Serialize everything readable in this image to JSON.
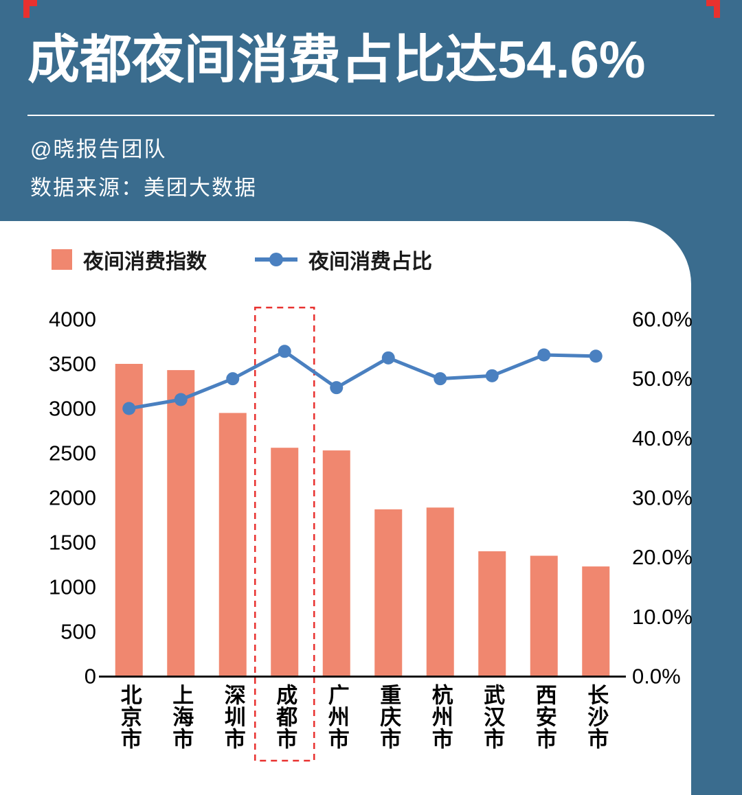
{
  "page": {
    "title": "成都夜间消费占比达54.6%",
    "byline": "@晓报告团队",
    "source": "数据来源：美团大数据"
  },
  "colors": {
    "background": "#3a6c8e",
    "bar": "#f0876f",
    "line": "#4a80c0",
    "highlight": "#e8312f"
  },
  "legend": [
    {
      "label": "夜间消费指数",
      "type": "bar"
    },
    {
      "label": "夜间消费占比",
      "type": "line"
    }
  ],
  "chart_data": {
    "type": "bar+line",
    "title": "成都夜间消费占比达54.6%",
    "categories": [
      "北京市",
      "上海市",
      "深圳市",
      "成都市",
      "广州市",
      "重庆市",
      "杭州市",
      "武汉市",
      "西安市",
      "长沙市"
    ],
    "series": [
      {
        "name": "夜间消费指数",
        "type": "bar",
        "axis": "left",
        "values": [
          3500,
          3430,
          2950,
          2560,
          2530,
          1870,
          1890,
          1400,
          1350,
          1230
        ]
      },
      {
        "name": "夜间消费占比",
        "type": "line",
        "axis": "right",
        "values": [
          45.0,
          46.5,
          50.0,
          54.6,
          48.5,
          53.5,
          50.0,
          50.5,
          54.0,
          53.8
        ]
      }
    ],
    "left_axis": {
      "min": 0,
      "max": 4000,
      "step": 500,
      "ticks": [
        "4000",
        "3500",
        "3000",
        "2500",
        "2000",
        "1500",
        "1000",
        "500",
        "0"
      ]
    },
    "right_axis": {
      "min": 0,
      "max": 60,
      "step": 10,
      "ticks": [
        "60.0%",
        "50.0%",
        "40.0%",
        "30.0%",
        "20.0%",
        "10.0%",
        "0.0%"
      ]
    },
    "highlight_category": "成都市",
    "grid": false,
    "legend_position": "top-left"
  }
}
